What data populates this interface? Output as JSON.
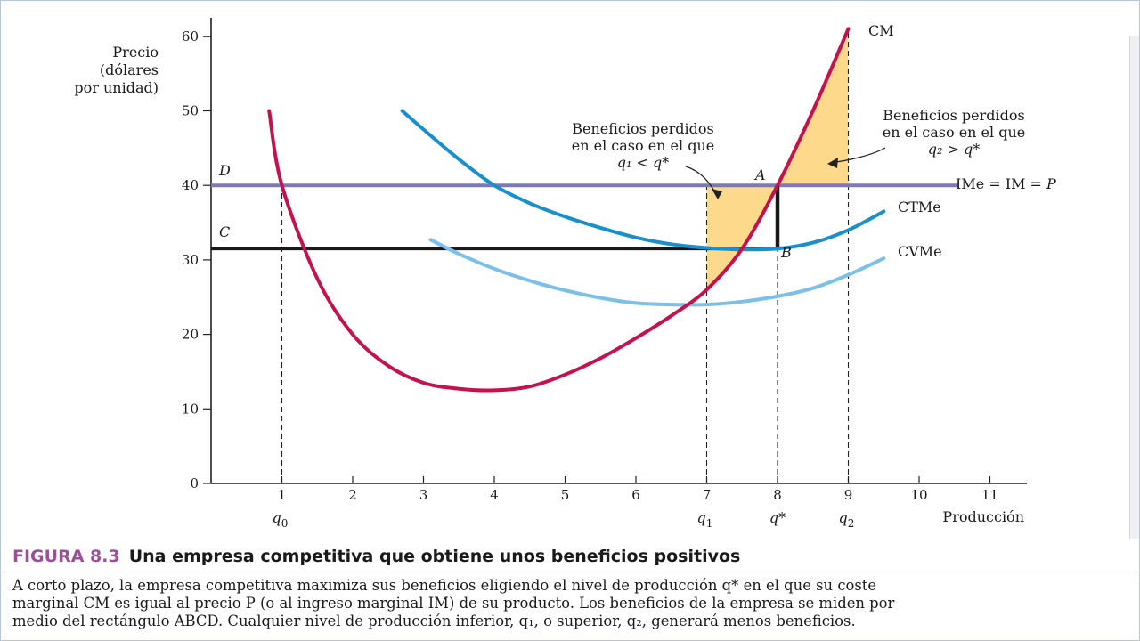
{
  "figure": {
    "number": "FIGURA 8.3",
    "title": "Una empresa competitiva que obtiene unos beneficios positivos",
    "caption_lines": [
      "A corto plazo, la empresa competitiva maximiza sus beneficios eligiendo el nivel de producción q* en el que su coste",
      "marginal CM es igual al precio P (o al ingreso marginal IM) de su producto. Los beneficios de la empresa se miden por",
      "medio del rectángulo ABCD. Cualquier nivel de producción inferior, q₁, o superior, q₂, generará menos beneficios."
    ]
  },
  "chart_data": {
    "type": "line",
    "xlabel": "Producción",
    "ylabel_lines": [
      "Precio",
      "(dólares",
      "por unidad)"
    ],
    "xlim": [
      0,
      11.5
    ],
    "ylim": [
      0,
      63
    ],
    "x_ticks": [
      1,
      2,
      3,
      4,
      5,
      6,
      7,
      8,
      9,
      10,
      11
    ],
    "y_ticks": [
      0,
      10,
      20,
      30,
      40,
      50,
      60
    ],
    "q_labels": [
      {
        "x": 1,
        "label": "q",
        "sub": "0"
      },
      {
        "x": 7,
        "label": "q",
        "sub": "1"
      },
      {
        "x": 8,
        "label": "q*",
        "sub": ""
      },
      {
        "x": 9,
        "label": "q",
        "sub": "2"
      }
    ],
    "colors": {
      "CM": "#c4124f",
      "CTMe": "#1b8fcb",
      "CVMe": "#7cc0e8",
      "price": "#7d78bb",
      "profit_rect": "#1a1a1a",
      "lost_profit_fill": "#fcd98b"
    },
    "series": [
      {
        "name": "CM",
        "x": [
          0.82,
          1.0,
          1.5,
          2.0,
          2.5,
          3.0,
          3.5,
          4.0,
          4.5,
          5.0,
          5.5,
          6.0,
          6.5,
          7.0,
          7.5,
          8.0,
          8.5,
          9.0
        ],
        "values": [
          50.0,
          40.0,
          27.5,
          20.0,
          15.8,
          13.5,
          12.7,
          12.5,
          13.0,
          14.6,
          16.8,
          19.5,
          22.5,
          26.0,
          31.5,
          40.0,
          50.0,
          61.0
        ]
      },
      {
        "name": "CTMe",
        "x": [
          2.7,
          3.0,
          3.5,
          4.0,
          4.5,
          5.0,
          5.5,
          6.0,
          6.5,
          7.0,
          7.5,
          8.0,
          8.5,
          9.0,
          9.5
        ],
        "values": [
          50.0,
          47.5,
          43.5,
          40.0,
          37.6,
          35.8,
          34.3,
          33.0,
          32.1,
          31.6,
          31.4,
          31.5,
          32.3,
          34.0,
          36.5
        ]
      },
      {
        "name": "CVMe",
        "x": [
          3.1,
          3.5,
          4.0,
          4.5,
          5.0,
          5.5,
          6.0,
          6.5,
          7.0,
          7.5,
          8.0,
          8.5,
          9.0,
          9.5
        ],
        "values": [
          32.7,
          30.8,
          28.8,
          27.2,
          25.9,
          24.9,
          24.2,
          24.0,
          24.0,
          24.4,
          25.1,
          26.2,
          28.0,
          30.2
        ]
      },
      {
        "name": "IMe = IM = P",
        "x": [
          0,
          10.55
        ],
        "values": [
          40,
          40
        ]
      }
    ],
    "profit_rectangle": {
      "x0": 0,
      "x1": 8,
      "y_low": 31.5,
      "y_high": 40
    },
    "lost_profit_regions": [
      {
        "x_from": 7,
        "x_to": 8,
        "label_lines": [
          "Beneficios perdidos",
          "en el caso en el que",
          "q₁ < q*"
        ]
      },
      {
        "x_from": 8,
        "x_to": 9,
        "label_lines": [
          "Beneficios perdidos",
          "en el caso en el que",
          "q₂ > q*"
        ]
      }
    ],
    "points": [
      {
        "label": "A",
        "x": 8,
        "y": 40
      },
      {
        "label": "B",
        "x": 8,
        "y": 31.5
      },
      {
        "label": "C",
        "x": 0,
        "y": 31.5
      },
      {
        "label": "D",
        "x": 0,
        "y": 40
      }
    ]
  }
}
